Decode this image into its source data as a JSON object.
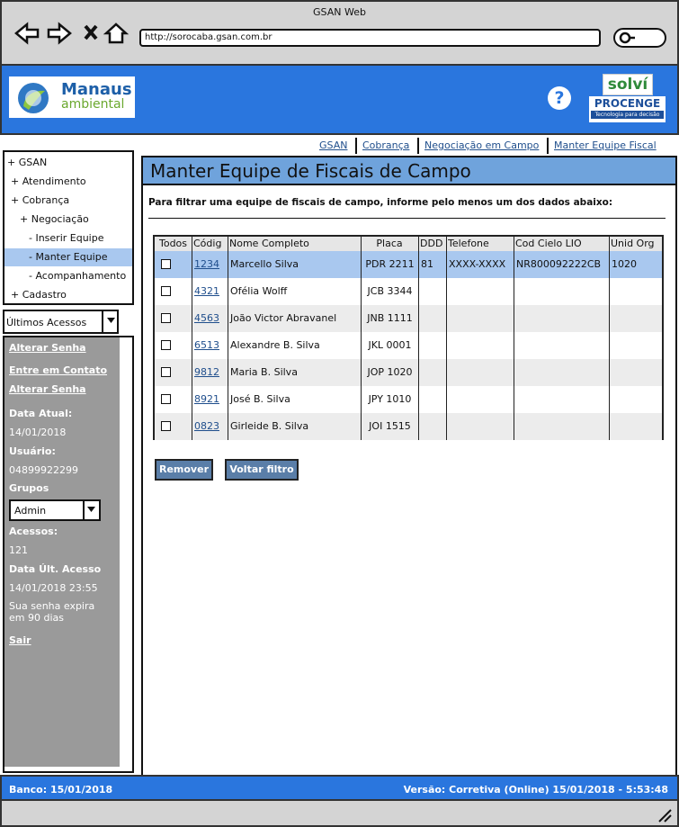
{
  "browser": {
    "title": "GSAN Web",
    "url": "http://sorocaba.gsan.com.br"
  },
  "header": {
    "logo_line1": "Manaus",
    "logo_line2": "ambiental",
    "help": "?",
    "partner1": "solví",
    "partner2": "PROCENGE",
    "partner2_tagline": "Tecnologia para decisão"
  },
  "menu": {
    "items": [
      {
        "label": "+ GSAN",
        "level": 0
      },
      {
        "label": "+ Atendimento",
        "level": 1
      },
      {
        "label": "+ Cobrança",
        "level": 1
      },
      {
        "label": "+ Negociação",
        "level": 2
      },
      {
        "label": "- Inserir Equipe",
        "level": 3
      },
      {
        "label": "- Manter Equipe",
        "level": 3,
        "selected": true
      },
      {
        "label": "- Acompanhamento",
        "level": 3
      },
      {
        "label": "+ Cadastro",
        "level": 1
      }
    ]
  },
  "recent": {
    "label": "Últimos Acessos"
  },
  "sidebar": {
    "links": [
      "Alterar Senha",
      "Entre em Contato",
      "Alterar Senha"
    ],
    "current_date_label": "Data Atual:",
    "current_date": "14/01/2018",
    "user_label": "Usuário:",
    "user": "04899922299",
    "groups_label": "Grupos",
    "group": "Admin",
    "accesses_label": "Acessos:",
    "accesses": 121,
    "last_access_label": "Data Últ. Acesso",
    "last_access": "14/01/2018 23:55",
    "password_notice": "Sua senha expira em 90 dias",
    "logout": "Sair"
  },
  "breadcrumb": [
    "GSAN",
    "Cobrança",
    "Negociação em Campo",
    "Manter Equipe Fiscal"
  ],
  "page": {
    "title": "Manter Equipe de Fiscais de Campo",
    "instruction": "Para filtrar uma equipe de fiscais de campo, informe pelo menos um dos dados abaixo:"
  },
  "table": {
    "columns": [
      "Todos",
      "Códig",
      "Nome Completo",
      "Placa",
      "DDD",
      "Telefone",
      "Cod Cielo LIO",
      "Unid Org"
    ],
    "rows": [
      {
        "code": "1234",
        "name": "Marcello Silva",
        "plate": "PDR 2211",
        "ddd": "81",
        "phone": "XXXX-XXXX",
        "cielo": "NR800092222CB",
        "unit": "1020",
        "selected": true
      },
      {
        "code": "4321",
        "name": "Ofélia Wolff",
        "plate": "JCB 3344"
      },
      {
        "code": "4563",
        "name": "João Victor Abravanel",
        "plate": "JNB 1111"
      },
      {
        "code": "6513",
        "name": "Alexandre B. Silva",
        "plate": "JKL 0001"
      },
      {
        "code": "9812",
        "name": "Maria B. Silva",
        "plate": "JOP 1020"
      },
      {
        "code": "8921",
        "name": "José B. Silva",
        "plate": "JPY 1010"
      },
      {
        "code": "0823",
        "name": "Girleide B. Silva",
        "plate": "JOI 1515"
      }
    ]
  },
  "buttons": [
    "Remover",
    "Voltar filtro"
  ],
  "footer": {
    "bank": "Banco: 15/01/2018",
    "version": "Versão: Corretiva (Online) 15/01/2018 - 5:53:48"
  }
}
